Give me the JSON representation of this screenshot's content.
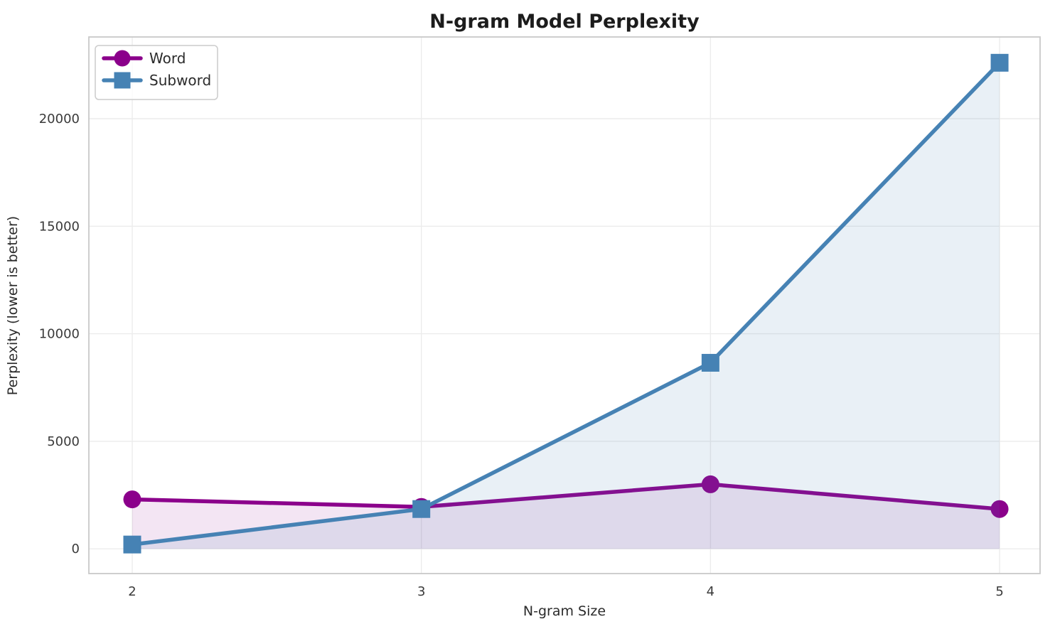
{
  "chart_data": {
    "type": "line",
    "title": "N-gram Model Perplexity",
    "xlabel": "N-gram Size",
    "ylabel": "Perplexity (lower is better)",
    "x": [
      2,
      3,
      4,
      5
    ],
    "xticks": [
      2,
      3,
      4,
      5
    ],
    "yticks": [
      0,
      5000,
      10000,
      15000,
      20000
    ],
    "xlim": [
      1.85,
      5.14
    ],
    "ylim": [
      -1150,
      23800
    ],
    "grid": true,
    "legend_position": "upper left",
    "area_baseline": 0,
    "colors": {
      "background": "#ffffff",
      "grid": "#ececec",
      "spine": "#c9c9c9",
      "text": "#2b2b2b"
    },
    "series": [
      {
        "name": "Word",
        "color": "#8B008B",
        "marker": "circle",
        "fill_opacity": 0.1,
        "values": [
          2300,
          1950,
          3000,
          1850
        ]
      },
      {
        "name": "Subword",
        "color": "#4682B4",
        "marker": "square",
        "fill_opacity": 0.12,
        "values": [
          200,
          1850,
          8650,
          22600
        ]
      }
    ]
  }
}
